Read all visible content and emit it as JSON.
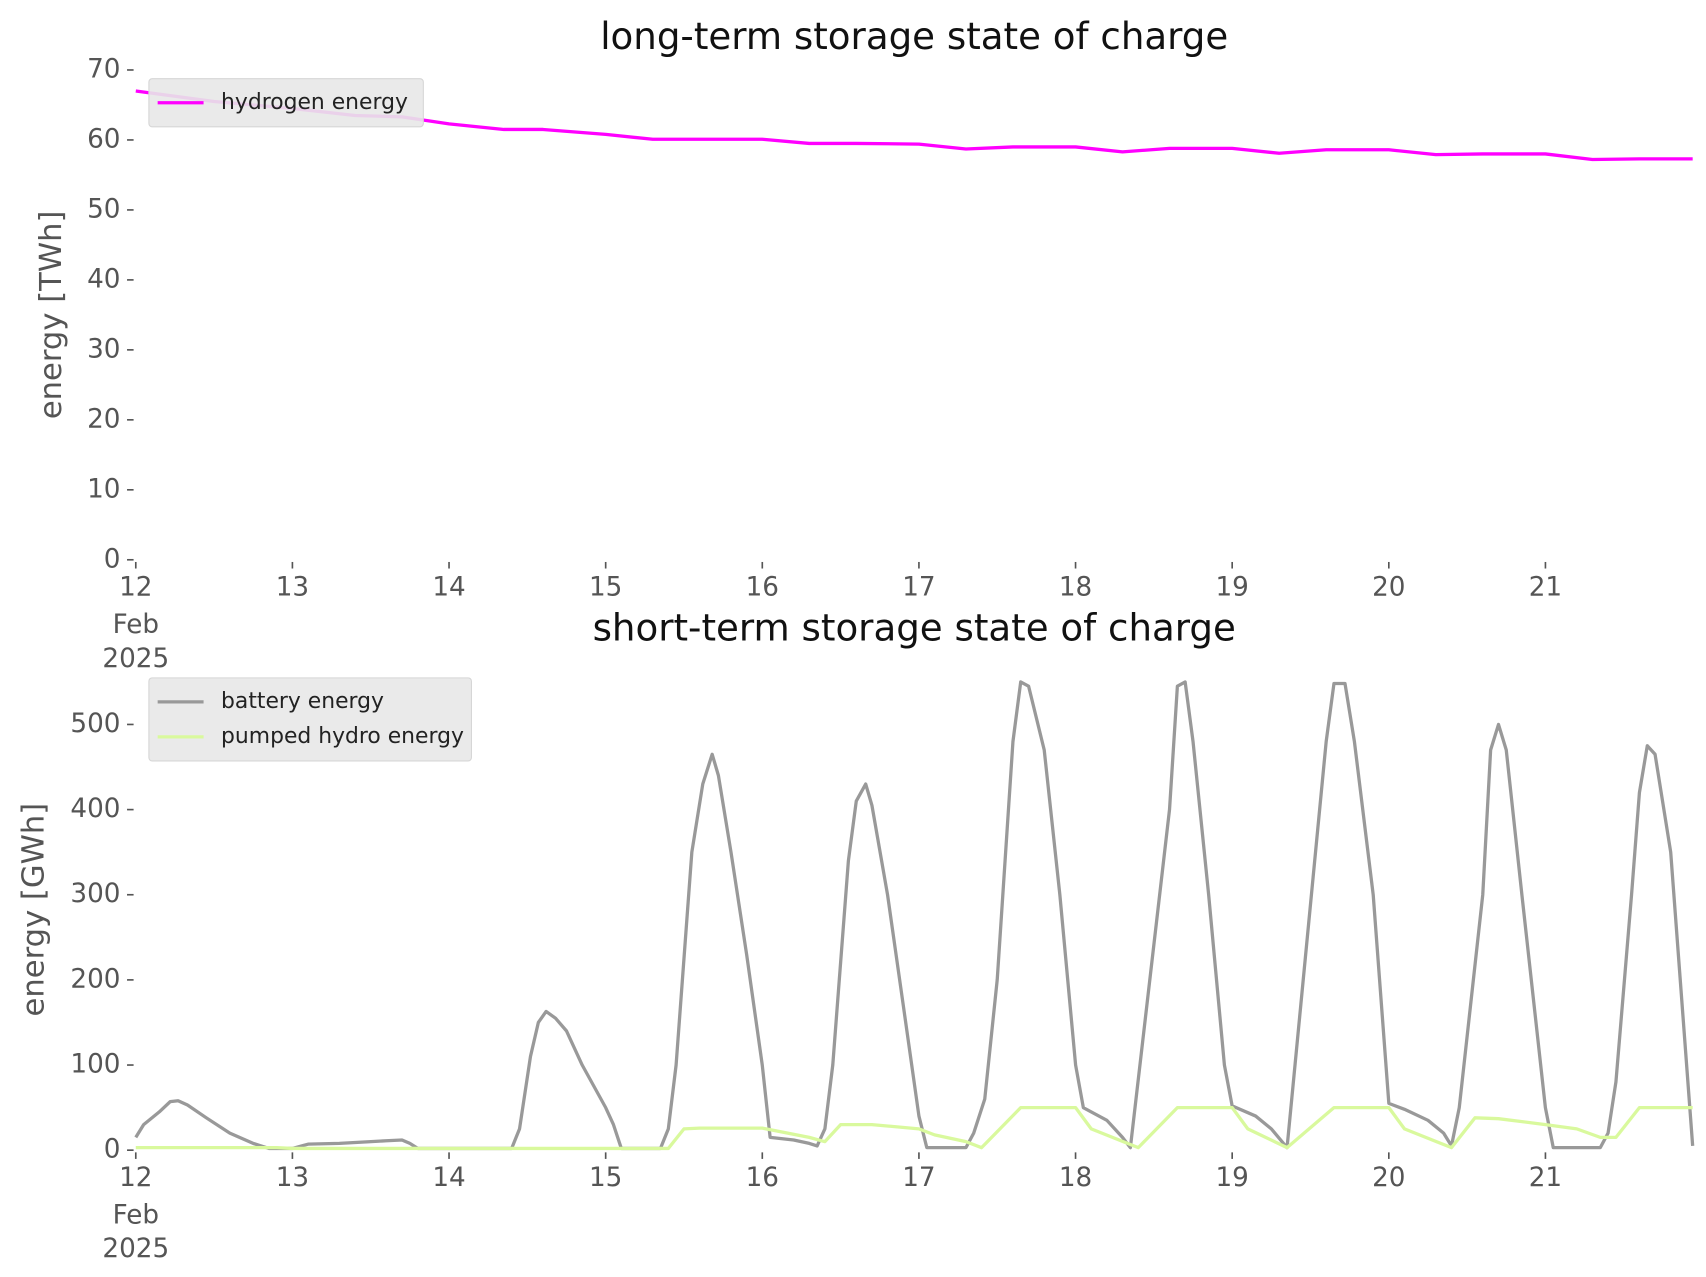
{
  "chart_data": [
    {
      "type": "line",
      "title": "long-term storage state of charge",
      "ylabel": "energy [TWh]",
      "xlim": [
        12,
        21.94
      ],
      "xticks": [
        12,
        13,
        14,
        15,
        16,
        17,
        18,
        19,
        20,
        21
      ],
      "xtick_sublabels": [
        "Feb",
        "2025"
      ],
      "ylim": [
        0,
        70
      ],
      "yticks": [
        0,
        10,
        20,
        30,
        40,
        50,
        60,
        70
      ],
      "legend": "upper left",
      "series": [
        {
          "name": "hydrogen energy",
          "color": "#ff00ff",
          "x": [
            12,
            12.5,
            13,
            13.4,
            13.7,
            14,
            14.35,
            14.6,
            15,
            15.3,
            15.6,
            16,
            16.3,
            16.6,
            17,
            17.3,
            17.6,
            18,
            18.3,
            18.6,
            19,
            19.3,
            19.6,
            20,
            20.3,
            20.6,
            21,
            21.3,
            21.6,
            21.94
          ],
          "values": [
            67,
            65.5,
            64.5,
            63.5,
            63.3,
            62.3,
            61.5,
            61.5,
            60.8,
            60.1,
            60.1,
            60.1,
            59.5,
            59.5,
            59.4,
            58.7,
            59,
            59,
            58.3,
            58.8,
            58.8,
            58.1,
            58.6,
            58.6,
            57.9,
            58,
            58,
            57.2,
            57.3,
            57.3
          ]
        }
      ]
    },
    {
      "type": "line",
      "title": "short-term storage state of charge",
      "ylabel": "energy [GWh]",
      "xlim": [
        12,
        21.94
      ],
      "xticks": [
        12,
        13,
        14,
        15,
        16,
        17,
        18,
        19,
        20,
        21
      ],
      "xtick_sublabels": [
        "Feb",
        "2025"
      ],
      "ylim": [
        0,
        565
      ],
      "yticks": [
        0,
        100,
        200,
        300,
        400,
        500
      ],
      "legend": "upper left",
      "series": [
        {
          "name": "battery energy",
          "color": "#999999",
          "x": [
            12,
            12.05,
            12.15,
            12.22,
            12.27,
            12.33,
            12.45,
            12.6,
            12.75,
            12.85,
            13.0,
            13.1,
            13.3,
            13.6,
            13.7,
            13.75,
            13.8,
            14.4,
            14.45,
            14.52,
            14.57,
            14.62,
            14.68,
            14.75,
            14.85,
            15.0,
            15.05,
            15.1,
            15.35,
            15.4,
            15.45,
            15.55,
            15.62,
            15.68,
            15.72,
            15.8,
            15.9,
            16.0,
            16.05,
            16.2,
            16.3,
            16.35,
            16.4,
            16.45,
            16.55,
            16.6,
            16.66,
            16.7,
            16.8,
            16.9,
            17.0,
            17.05,
            17.3,
            17.35,
            17.42,
            17.5,
            17.6,
            17.65,
            17.7,
            17.8,
            17.9,
            18.0,
            18.05,
            18.2,
            18.3,
            18.35,
            18.6,
            18.65,
            18.7,
            18.75,
            18.85,
            18.95,
            19.0,
            19.15,
            19.25,
            19.35,
            19.6,
            19.65,
            19.72,
            19.78,
            19.9,
            20.0,
            20.1,
            20.25,
            20.35,
            20.4,
            20.45,
            20.6,
            20.65,
            20.7,
            20.75,
            20.85,
            21.0,
            21.05,
            21.35,
            21.4,
            21.45,
            21.55,
            21.6,
            21.65,
            21.7,
            21.8,
            21.94
          ],
          "values": [
            15,
            30,
            45,
            57,
            58,
            53,
            38,
            20,
            8,
            2,
            2,
            7,
            8,
            11,
            12,
            8,
            2,
            2,
            25,
            110,
            150,
            163,
            155,
            140,
            100,
            50,
            30,
            2,
            2,
            25,
            100,
            350,
            430,
            465,
            440,
            350,
            230,
            100,
            15,
            12,
            8,
            5,
            25,
            100,
            340,
            410,
            430,
            405,
            300,
            170,
            40,
            3,
            3,
            20,
            60,
            200,
            480,
            550,
            545,
            470,
            300,
            100,
            50,
            35,
            15,
            3,
            400,
            545,
            550,
            480,
            300,
            100,
            52,
            40,
            25,
            3,
            480,
            548,
            548,
            480,
            300,
            55,
            48,
            35,
            20,
            5,
            50,
            300,
            470,
            500,
            470,
            300,
            50,
            3,
            3,
            20,
            80,
            300,
            420,
            475,
            465,
            350,
            5
          ]
        },
        {
          "name": "pumped hydro energy",
          "color": "#d9f99d",
          "x": [
            12,
            12.9,
            13.0,
            15.4,
            15.5,
            15.6,
            16.0,
            16.3,
            16.4,
            16.5,
            16.7,
            17.0,
            17.1,
            17.3,
            17.4,
            17.65,
            18.0,
            18.1,
            18.4,
            18.65,
            19.0,
            19.1,
            19.35,
            19.65,
            20.0,
            20.1,
            20.4,
            20.55,
            20.7,
            21.0,
            21.2,
            21.35,
            21.45,
            21.6,
            21.94
          ],
          "values": [
            3,
            3,
            2,
            2,
            25,
            26,
            26,
            15,
            10,
            30,
            30,
            25,
            18,
            10,
            3,
            50,
            50,
            25,
            3,
            50,
            50,
            25,
            3,
            50,
            50,
            25,
            3,
            38,
            37,
            30,
            25,
            15,
            15,
            50,
            50
          ]
        }
      ]
    }
  ]
}
